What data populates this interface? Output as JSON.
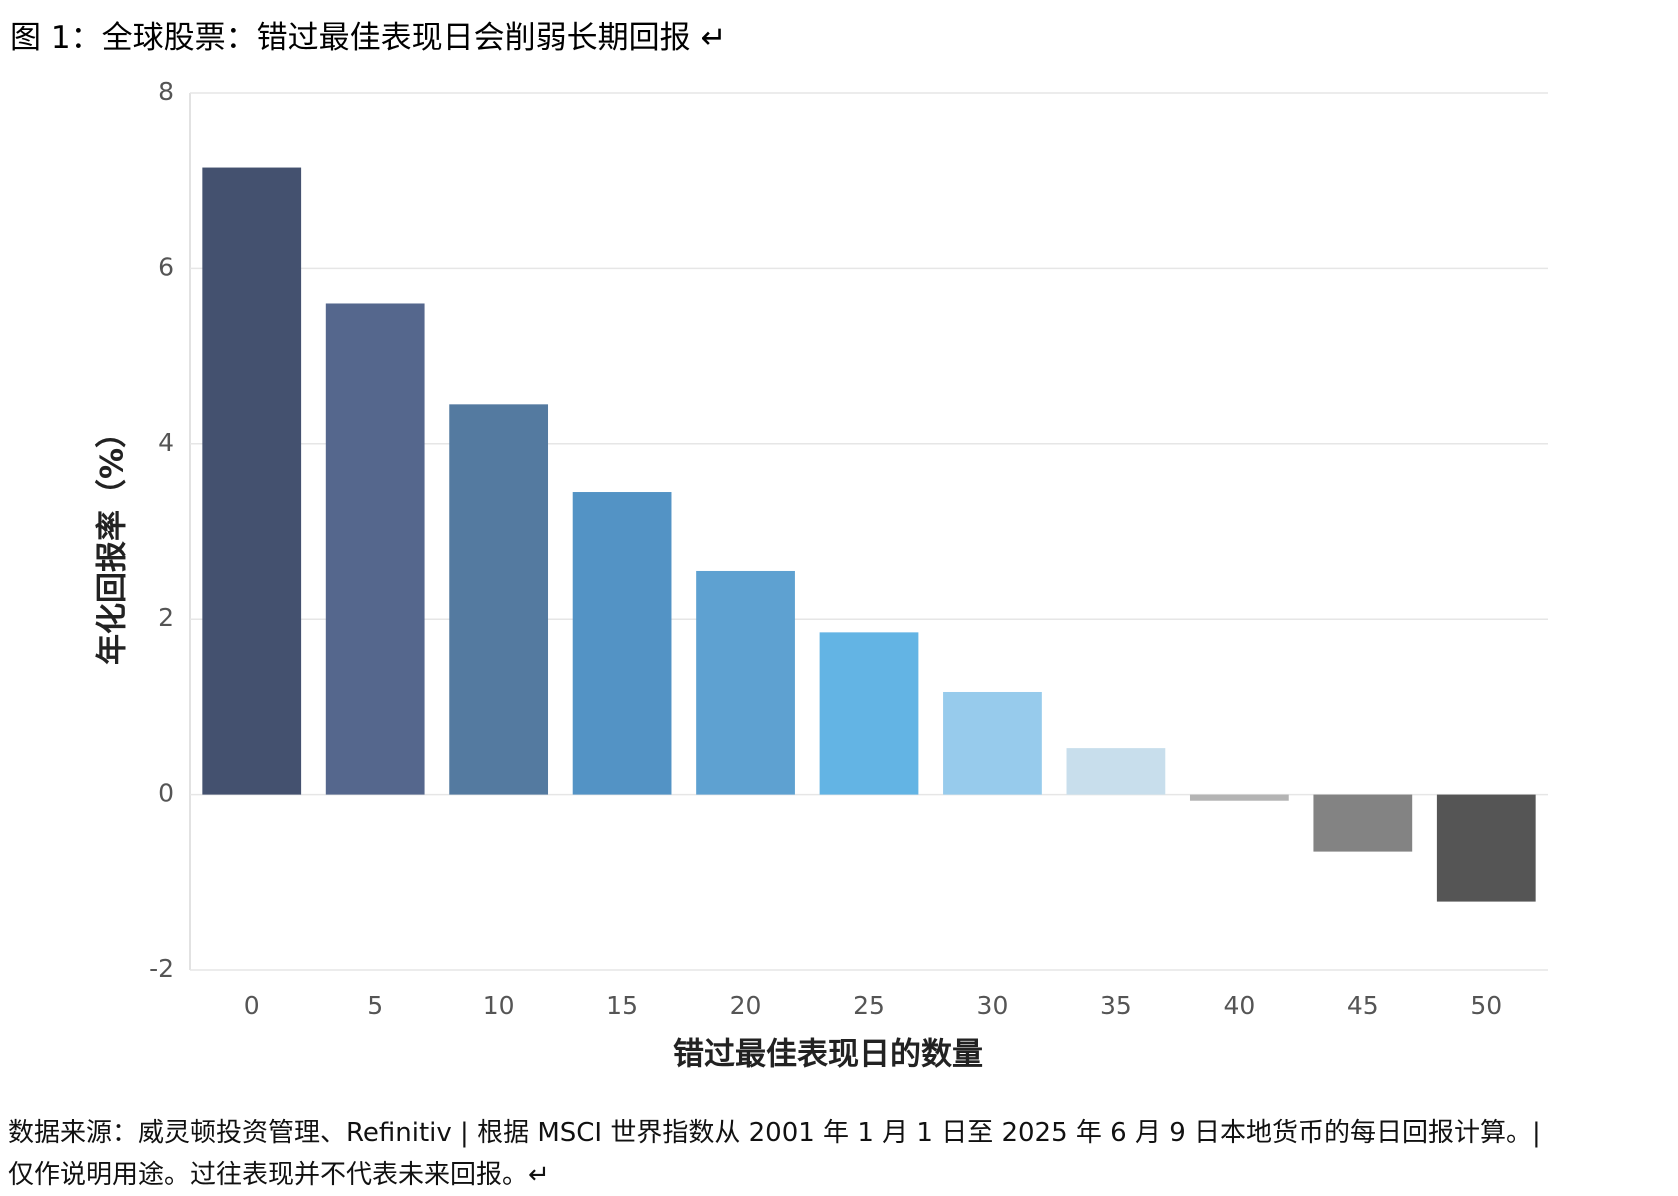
{
  "chart_data": {
    "type": "bar",
    "title": "图 1：全球股票：错过最佳表现日会削弱长期回报 ↵",
    "x_label": "错过最佳表现日的数量",
    "y_label": "年化回报率（%）",
    "categories": [
      "0",
      "5",
      "10",
      "15",
      "20",
      "25",
      "30",
      "35",
      "40",
      "45",
      "50"
    ],
    "values": [
      7.15,
      5.6,
      4.45,
      3.45,
      2.55,
      1.85,
      1.17,
      0.53,
      -0.07,
      -0.65,
      -1.22
    ],
    "colors": [
      "#44516f",
      "#55678d",
      "#547aa0",
      "#5393c5",
      "#5ea1d1",
      "#63b4e4",
      "#97cbec",
      "#c8deec",
      "#b4b4b4",
      "#838383",
      "#555555"
    ],
    "ylim": [
      -2,
      8
    ],
    "yticks": [
      -2,
      0,
      2,
      4,
      6,
      8
    ],
    "grid": true,
    "note": "数据来源：威灵顿投资管理、Refinitiv | 根据 MSCI 世界指数从 2001 年 1 月 1 日至 2025 年 6 月 9 日本地货币的每日回报计算。| 仅作说明用途。过往表现并不代表未来回报。↵"
  }
}
